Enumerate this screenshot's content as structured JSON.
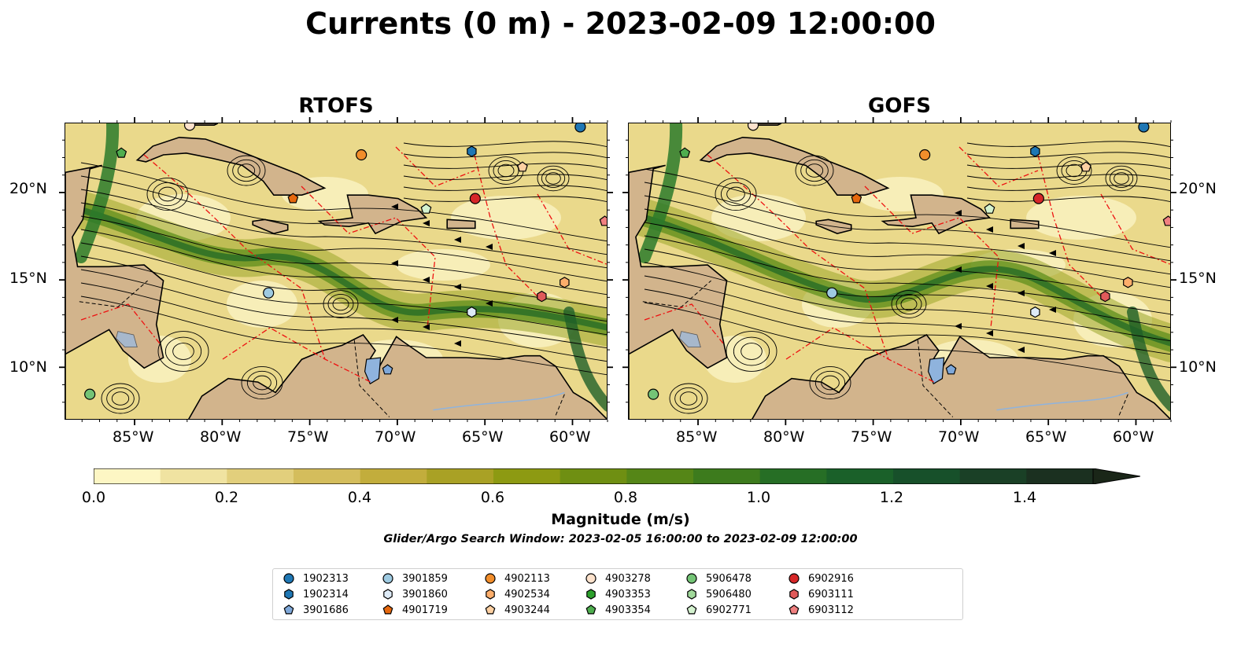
{
  "figure": {
    "title": "Currents (0 m) - 2023-02-09 12:00:00",
    "window_text": "Glider/Argo Search Window: 2023-02-05 16:00:00 to 2023-02-09 12:00:00"
  },
  "panels": [
    {
      "title": "RTOFS"
    },
    {
      "title": "GOFS"
    }
  ],
  "axes": {
    "lon_ticks": [
      "85°W",
      "80°W",
      "75°W",
      "70°W",
      "65°W",
      "60°W"
    ],
    "lat_ticks": [
      "20°N",
      "15°N",
      "10°N"
    ],
    "lon_range": [
      -89,
      -58
    ],
    "lat_range": [
      7,
      24
    ]
  },
  "colorbar": {
    "label": "Magnitude (m/s)",
    "ticks": [
      "0.0",
      "0.2",
      "0.4",
      "0.6",
      "0.8",
      "1.0",
      "1.2",
      "1.4"
    ],
    "range": [
      0.0,
      1.5
    ],
    "extend": "max",
    "colors": [
      "#fdf6c4",
      "#f0e3a1",
      "#e2cf7c",
      "#d4bd5c",
      "#c2ad3c",
      "#a9a125",
      "#8d9a12",
      "#6f8f12",
      "#558617",
      "#3d7b1d",
      "#266e25",
      "#1a6029",
      "#17502a",
      "#1a4026",
      "#1b3020",
      "#1a2618"
    ]
  },
  "legend": {
    "items": [
      {
        "label": "1902313",
        "shape": "circle",
        "color": "#1f77b4"
      },
      {
        "label": "1902314",
        "shape": "hexagon",
        "color": "#1f77b4"
      },
      {
        "label": "3901686",
        "shape": "pentagon",
        "color": "#7fa8d9"
      },
      {
        "label": "3901859",
        "shape": "circle",
        "color": "#9ecae1"
      },
      {
        "label": "3901860",
        "shape": "hexagon",
        "color": "#deebf7"
      },
      {
        "label": "4901719",
        "shape": "pentagon",
        "color": "#e6680e"
      },
      {
        "label": "4902113",
        "shape": "circle",
        "color": "#f28e2b"
      },
      {
        "label": "4902534",
        "shape": "hexagon",
        "color": "#fdae6b"
      },
      {
        "label": "4903244",
        "shape": "pentagon",
        "color": "#fdd0a2"
      },
      {
        "label": "4903278",
        "shape": "circle",
        "color": "#fde2cc"
      },
      {
        "label": "4903353",
        "shape": "hexagon",
        "color": "#2ca02c"
      },
      {
        "label": "4903354",
        "shape": "pentagon",
        "color": "#4fae4f"
      },
      {
        "label": "5906478",
        "shape": "circle",
        "color": "#74c476"
      },
      {
        "label": "5906480",
        "shape": "hexagon",
        "color": "#a1d99b"
      },
      {
        "label": "6902771",
        "shape": "pentagon",
        "color": "#d4f2cf"
      },
      {
        "label": "6902916",
        "shape": "circle",
        "color": "#d62728"
      },
      {
        "label": "6903111",
        "shape": "hexagon",
        "color": "#e05a5a"
      },
      {
        "label": "6903112",
        "shape": "pentagon",
        "color": "#f08080"
      }
    ]
  },
  "floats": [
    {
      "id": "1902313",
      "lon": -59.6,
      "lat": 23.8
    },
    {
      "id": "1902314",
      "lon": -65.8,
      "lat": 22.4
    },
    {
      "id": "3901686",
      "lon": -70.6,
      "lat": 9.9
    },
    {
      "id": "3901859",
      "lon": -77.4,
      "lat": 14.3
    },
    {
      "id": "3901860",
      "lon": -65.8,
      "lat": 13.2
    },
    {
      "id": "4901719",
      "lon": -76.0,
      "lat": 19.7
    },
    {
      "id": "4902113",
      "lon": -72.1,
      "lat": 22.2
    },
    {
      "id": "4902534",
      "lon": -60.5,
      "lat": 14.9
    },
    {
      "id": "4903244",
      "lon": -62.9,
      "lat": 21.5
    },
    {
      "id": "4903278",
      "lon": -81.9,
      "lat": 23.9
    },
    {
      "id": "4903354",
      "lon": -85.8,
      "lat": 22.3
    },
    {
      "id": "5906478",
      "lon": -87.6,
      "lat": 8.5
    },
    {
      "id": "6902771",
      "lon": -68.4,
      "lat": 19.1
    },
    {
      "id": "6902916",
      "lon": -65.6,
      "lat": 19.7
    },
    {
      "id": "6903111",
      "lon": -61.8,
      "lat": 14.1
    },
    {
      "id": "6903112",
      "lon": -58.2,
      "lat": 18.4
    }
  ]
}
